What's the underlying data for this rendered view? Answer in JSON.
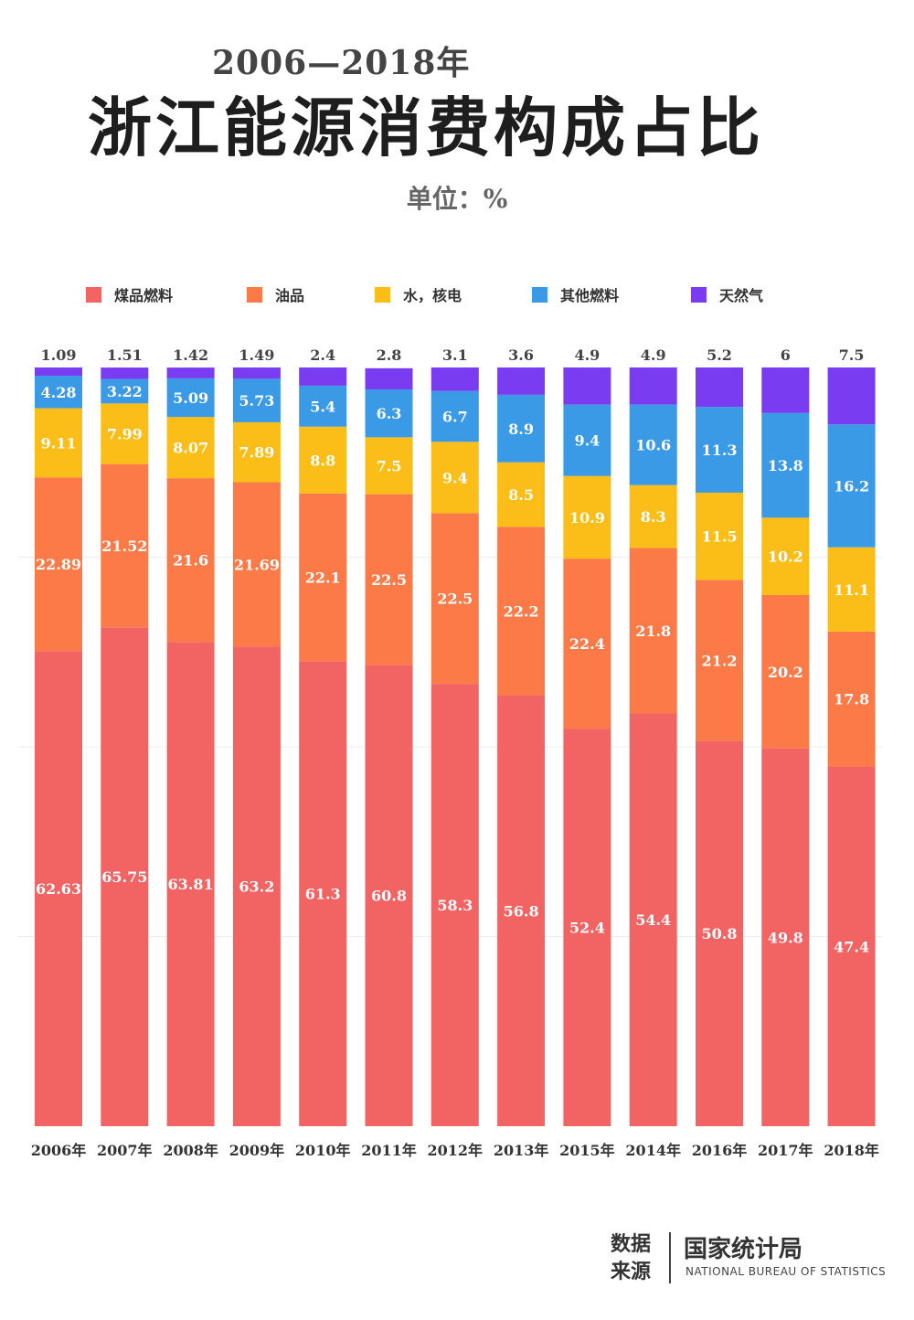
{
  "header": {
    "years": "2006—2018年",
    "title": "浙江能源消费构成占比",
    "unit": "单位：%"
  },
  "footer": {
    "label": "数据来源",
    "org": "国家统计局",
    "org_en": "NATIONAL BUREAU OF STATISTICS"
  },
  "chart_data": {
    "type": "bar",
    "stacked": true,
    "title": "浙江能源消费构成占比",
    "subtitle": "2006—2018年",
    "unit": "单位：%",
    "ylim": [
      0,
      100
    ],
    "legend_position": "top",
    "categories": [
      "2006年",
      "2007年",
      "2008年",
      "2009年",
      "2010年",
      "2011年",
      "2012年",
      "2013年",
      "2015年",
      "2014年",
      "2016年",
      "2017年",
      "2018年"
    ],
    "series": [
      {
        "name": "煤品燃料",
        "color": "#f26363",
        "labels": [
          "62.63",
          "65.75",
          "63.81",
          "63.2",
          "61.3",
          "60.8",
          "58.3",
          "56.8",
          "52.4",
          "54.4",
          "50.8",
          "49.8",
          "47.4"
        ],
        "values": [
          62.63,
          65.75,
          63.81,
          63.2,
          61.3,
          60.8,
          58.3,
          56.8,
          52.4,
          54.4,
          50.8,
          49.8,
          47.4
        ]
      },
      {
        "name": "油品",
        "color": "#fb7a48",
        "labels": [
          "22.89",
          "21.52",
          "21.6",
          "21.69",
          "22.1",
          "22.5",
          "22.5",
          "22.2",
          "22.4",
          "21.8",
          "21.2",
          "20.2",
          "17.8"
        ],
        "values": [
          22.89,
          21.52,
          21.6,
          21.69,
          22.1,
          22.5,
          22.5,
          22.2,
          22.4,
          21.8,
          21.2,
          20.2,
          17.8
        ]
      },
      {
        "name": "水，核电",
        "color": "#fbbd17",
        "labels": [
          "9.11",
          "7.99",
          "8.07",
          "7.89",
          "8.8",
          "7.5",
          "9.4",
          "8.5",
          "10.9",
          "8.3",
          "11.5",
          "10.2",
          "11.1"
        ],
        "values": [
          9.11,
          7.99,
          8.07,
          7.89,
          8.8,
          7.5,
          9.4,
          8.5,
          10.9,
          8.3,
          11.5,
          10.2,
          11.1
        ]
      },
      {
        "name": "其他燃料",
        "color": "#3a9ae6",
        "labels": [
          "4.28",
          "3.22",
          "5.09",
          "5.73",
          "5.4",
          "6.3",
          "6.7",
          "8.9",
          "9.4",
          "10.6",
          "11.3",
          "13.8",
          "16.2"
        ],
        "values": [
          4.28,
          3.22,
          5.09,
          5.73,
          5.4,
          6.3,
          6.7,
          8.9,
          9.4,
          10.6,
          11.3,
          13.8,
          16.2
        ]
      },
      {
        "name": "天然气",
        "color": "#7a3cf0",
        "labels": [
          "1.09",
          "1.51",
          "1.42",
          "1.49",
          "2.4",
          "2.8",
          "3.1",
          "3.6",
          "4.9",
          "4.9",
          "5.2",
          "6",
          "7.5"
        ],
        "values": [
          1.09,
          1.51,
          1.42,
          1.49,
          2.4,
          2.8,
          3.1,
          3.6,
          4.9,
          4.9,
          5.2,
          6,
          7.5
        ]
      }
    ]
  }
}
